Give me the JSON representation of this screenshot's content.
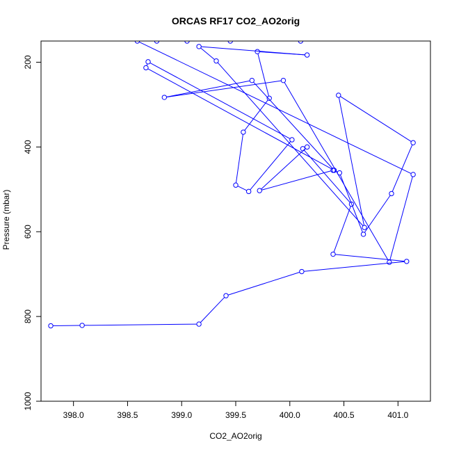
{
  "chart_data": {
    "type": "line",
    "title": "ORCAS RF17 CO2_AO2orig",
    "xlabel": "CO2_AO2orig",
    "ylabel": "Pressure (mbar)",
    "xlim": [
      397.7,
      401.3
    ],
    "ylim": [
      1000,
      150
    ],
    "y_reversed": true,
    "x_ticks": [
      398.0,
      398.5,
      399.0,
      399.5,
      400.0,
      400.5,
      401.0
    ],
    "x_tick_labels": [
      "398.0",
      "398.5",
      "399.0",
      "399.5",
      "400.0",
      "400.5",
      "401.0"
    ],
    "y_ticks": [
      200,
      400,
      600,
      800,
      1000
    ],
    "y_tick_labels": [
      "200",
      "400",
      "600",
      "800",
      "1000"
    ],
    "grid": false,
    "series": [
      {
        "color": "#0000ff",
        "markers": "open-circle",
        "points": [
          {
            "x": 397.79,
            "y": 822
          },
          {
            "x": 398.08,
            "y": 821
          },
          {
            "x": 399.16,
            "y": 818
          },
          {
            "x": 399.41,
            "y": 751
          },
          {
            "x": 400.11,
            "y": 694
          },
          {
            "x": 401.08,
            "y": 670
          },
          {
            "x": 400.4,
            "y": 653
          },
          {
            "x": 400.57,
            "y": 535
          },
          {
            "x": 400.12,
            "y": 404
          },
          {
            "x": 400.16,
            "y": 400
          },
          {
            "x": 399.72,
            "y": 503
          },
          {
            "x": 400.4,
            "y": 455
          },
          {
            "x": 400.46,
            "y": 461
          },
          {
            "x": 400.68,
            "y": 606
          },
          {
            "x": 400.94,
            "y": 510
          },
          {
            "x": 401.14,
            "y": 390
          },
          {
            "x": 400.45,
            "y": 278
          },
          {
            "x": 400.69,
            "y": 590
          },
          {
            "x": 399.32,
            "y": 197
          },
          {
            "x": 399.16,
            "y": 163
          },
          {
            "x": 400.16,
            "y": 183
          },
          {
            "x": 399.7,
            "y": 175
          },
          {
            "x": 399.81,
            "y": 285
          },
          {
            "x": 399.57,
            "y": 365
          },
          {
            "x": 399.5,
            "y": 490
          },
          {
            "x": 399.62,
            "y": 505
          },
          {
            "x": 400.02,
            "y": 383
          },
          {
            "x": 398.69,
            "y": 199
          },
          {
            "x": 398.67,
            "y": 213
          },
          {
            "x": 400.41,
            "y": 455
          },
          {
            "x": 399.65,
            "y": 243
          },
          {
            "x": 398.84,
            "y": 283
          },
          {
            "x": 399.94,
            "y": 243
          },
          {
            "x": 400.92,
            "y": 672
          },
          {
            "x": 401.14,
            "y": 465
          },
          {
            "x": 398.59,
            "y": 150
          },
          {
            "x": 398.77,
            "y": 150
          },
          {
            "x": 399.05,
            "y": 150
          },
          {
            "x": 399.45,
            "y": 150
          },
          {
            "x": 400.1,
            "y": 150
          }
        ]
      }
    ]
  }
}
